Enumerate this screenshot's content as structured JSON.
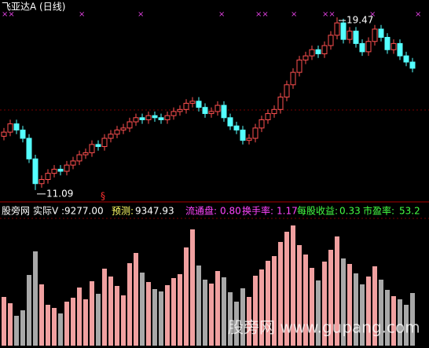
{
  "chart_data": {
    "type": "candlestick",
    "title": "飞亚达A (日线)",
    "up_color": "#ff5050",
    "down_color": "#54ffff",
    "volume_up_color": "#f0a0a0",
    "volume_down_color": "#a8a8a8",
    "ylim": [
      10.59,
      19.93
    ],
    "volume_ylim": [
      0,
      16000
    ],
    "open": [
      13.7,
      13.9,
      14.3,
      14.0,
      13.6,
      12.6,
      11.4,
      11.6,
      11.9,
      12.1,
      12.0,
      12.3,
      12.5,
      12.8,
      12.9,
      13.3,
      13.2,
      13.6,
      13.8,
      14.0,
      14.1,
      14.4,
      14.6,
      14.5,
      14.7,
      14.6,
      14.5,
      14.7,
      14.9,
      15.0,
      15.3,
      15.4,
      15.1,
      14.8,
      14.9,
      15.2,
      14.6,
      14.2,
      14.0,
      13.5,
      13.6,
      14.1,
      14.5,
      14.8,
      15.0,
      15.6,
      16.2,
      16.8,
      17.4,
      17.6,
      17.9,
      17.7,
      18.1,
      18.6,
      19.2,
      18.4,
      18.8,
      18.2,
      17.8,
      18.3,
      18.9,
      18.5,
      17.9,
      18.2,
      17.6,
      17.3
    ],
    "high": [
      14.1,
      14.5,
      14.5,
      14.2,
      13.8,
      12.8,
      11.8,
      12.1,
      12.3,
      12.3,
      12.5,
      12.7,
      13.0,
      13.1,
      13.5,
      13.5,
      13.8,
      14.0,
      14.2,
      14.3,
      14.6,
      14.8,
      14.8,
      14.9,
      14.9,
      14.8,
      14.9,
      15.1,
      15.2,
      15.5,
      15.6,
      15.6,
      15.3,
      15.1,
      15.4,
      15.4,
      14.8,
      14.4,
      14.2,
      13.8,
      14.3,
      14.7,
      15.0,
      15.2,
      15.8,
      16.4,
      17.0,
      17.6,
      17.8,
      18.1,
      18.1,
      18.3,
      18.8,
      19.47,
      19.4,
      19.0,
      19.0,
      18.4,
      18.5,
      19.1,
      19.1,
      18.7,
      18.4,
      18.4,
      17.8,
      17.5
    ],
    "low": [
      13.5,
      13.7,
      13.8,
      13.4,
      12.4,
      11.09,
      11.2,
      11.4,
      11.7,
      11.8,
      11.8,
      12.1,
      12.3,
      12.6,
      12.7,
      13.0,
      13.0,
      13.4,
      13.6,
      13.8,
      13.9,
      14.2,
      14.3,
      14.3,
      14.4,
      14.3,
      14.3,
      14.5,
      14.7,
      14.8,
      15.1,
      14.9,
      14.6,
      14.6,
      14.7,
      14.4,
      14.0,
      13.8,
      13.3,
      13.3,
      13.4,
      13.9,
      14.3,
      14.6,
      14.8,
      15.4,
      16.0,
      16.6,
      17.2,
      17.4,
      17.5,
      17.5,
      17.9,
      18.4,
      18.2,
      18.2,
      18.0,
      17.6,
      17.6,
      18.1,
      18.3,
      17.7,
      17.7,
      17.4,
      17.1,
      16.8
    ],
    "close": [
      13.9,
      14.3,
      14.0,
      13.6,
      12.6,
      11.4,
      11.6,
      11.9,
      12.1,
      12.0,
      12.3,
      12.5,
      12.8,
      12.9,
      13.3,
      13.2,
      13.6,
      13.8,
      14.0,
      14.1,
      14.4,
      14.6,
      14.5,
      14.7,
      14.6,
      14.5,
      14.7,
      14.9,
      15.0,
      15.3,
      15.4,
      15.1,
      14.8,
      14.9,
      15.2,
      14.6,
      14.2,
      14.0,
      13.5,
      13.6,
      14.1,
      14.5,
      14.8,
      15.0,
      15.6,
      16.2,
      16.8,
      17.4,
      17.6,
      17.9,
      17.7,
      18.1,
      18.6,
      19.2,
      18.4,
      18.8,
      18.2,
      17.8,
      18.3,
      18.9,
      18.5,
      17.9,
      18.2,
      17.6,
      17.3,
      17.0
    ],
    "volume": [
      6200,
      5400,
      3800,
      4500,
      9000,
      12000,
      7800,
      5200,
      4800,
      4100,
      5600,
      6100,
      7400,
      5900,
      8200,
      6600,
      9800,
      8800,
      7600,
      6400,
      10500,
      11800,
      9300,
      8100,
      7200,
      6900,
      7700,
      8600,
      9100,
      12500,
      14800,
      10200,
      8400,
      7900,
      9500,
      8700,
      6800,
      5600,
      7300,
      6200,
      8900,
      9700,
      10800,
      11400,
      13200,
      14500,
      15300,
      12800,
      11600,
      9900,
      8300,
      10700,
      12200,
      13900,
      11100,
      10400,
      9200,
      7800,
      8800,
      10100,
      8400,
      7100,
      6300,
      5900,
      5200,
      6700
    ],
    "info": {
      "site": "股旁网",
      "items": [
        {
          "label": "实际V :",
          "value": "9277.00",
          "color": "#ffffff",
          "value_color": "#ffffff"
        },
        {
          "label": "预测:",
          "value": "9347.93",
          "color": "#ffff66",
          "value_color": "#ffffff"
        },
        {
          "label": "流通盘:",
          "value": "0.80",
          "color": "#ff44ff",
          "value_color": "#ff44ff"
        },
        {
          "label": "换手率:",
          "value": "1.17",
          "color": "#ff44ff",
          "value_color": "#ff44ff"
        },
        {
          "label": "每股收益:",
          "value": "0.33",
          "color": "#44ff44",
          "value_color": "#44ff44"
        },
        {
          "label": "市盈率:",
          "value": "53.2",
          "color": "#44ff44",
          "value_color": "#44ff44"
        }
      ]
    },
    "watermark": "股旁网 www.gupang.com"
  }
}
